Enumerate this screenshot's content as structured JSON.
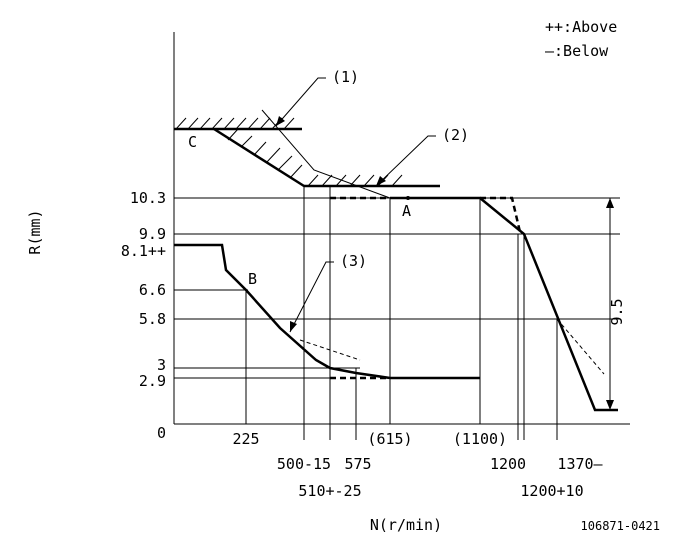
{
  "legend": {
    "above": "++:Above",
    "below": "—:Below"
  },
  "axes": {
    "x_label": "N(r/min)",
    "y_label": "R(mm)",
    "origin": "0"
  },
  "y_ticks": [
    "10.3",
    "9.9",
    "8.1++",
    "6.6",
    "5.8",
    "3",
    "2.9"
  ],
  "x_ticks": [
    "225",
    "500-15",
    "510+-25",
    "575",
    "(615)",
    "(1100)",
    "1200",
    "1200+10",
    "1370—"
  ],
  "points": {
    "a": "A",
    "b": "B",
    "c": "C"
  },
  "callouts": [
    "(1)",
    "(2)",
    "(3)"
  ],
  "dimension": "9.5",
  "doc_id": "106871-0421"
}
